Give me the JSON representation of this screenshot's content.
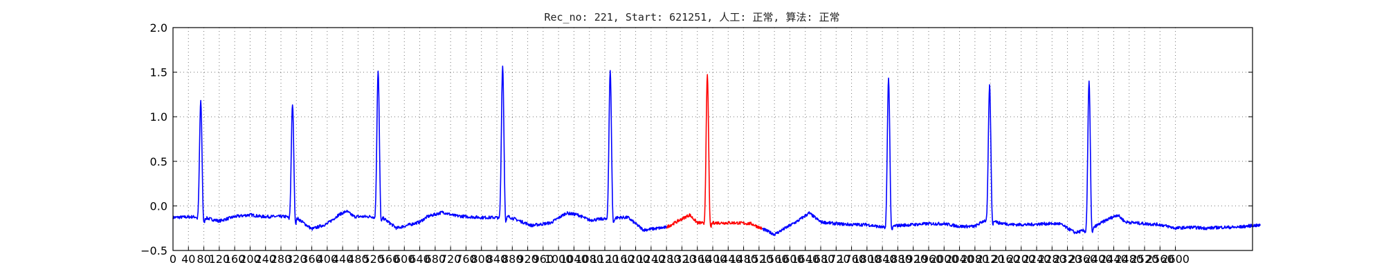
{
  "chart_data": {
    "type": "line",
    "title": "Rec_no: 221, Start: 621251, 人工: 正常, 算法: 正常",
    "xlim": [
      0,
      2800
    ],
    "ylim": [
      -0.5,
      2.0
    ],
    "yticks": [
      "−0.5",
      "0.0",
      "0.5",
      "1.0",
      "1.5",
      "2.0"
    ],
    "y_tick_values": [
      -0.5,
      0.0,
      0.5,
      1.0,
      1.5,
      2.0
    ],
    "xtick_step": 40,
    "xtick_labels": [
      "0",
      "40",
      "80",
      "120",
      "160",
      "200",
      "240",
      "280",
      "320",
      "360",
      "400",
      "440",
      "480",
      "520",
      "560",
      "600",
      "640",
      "680",
      "720",
      "760",
      "800",
      "840",
      "880",
      "920",
      "960",
      "1000",
      "1040",
      "1080",
      "1120",
      "1160",
      "1200",
      "1240",
      "1280",
      "1320",
      "1360",
      "1400",
      "1440",
      "1480",
      "1520",
      "1560",
      "1600",
      "1640",
      "1680",
      "1720",
      "1760",
      "1800",
      "1840",
      "1880",
      "1920",
      "1960",
      "2000",
      "2040",
      "2080",
      "2120",
      "2160",
      "2200",
      "2240",
      "2280",
      "2320",
      "2360",
      "2400",
      "2440",
      "2480",
      "2520",
      "2560",
      "2600"
    ],
    "grid": true,
    "baseline": [
      [
        0,
        -0.13
      ],
      [
        70,
        -0.12
      ],
      [
        120,
        -0.17
      ],
      [
        160,
        -0.12
      ],
      [
        200,
        -0.1
      ],
      [
        230,
        -0.12
      ],
      [
        260,
        -0.12
      ],
      [
        290,
        -0.12
      ],
      [
        320,
        -0.13
      ],
      [
        360,
        -0.26
      ],
      [
        400,
        -0.2
      ],
      [
        430,
        -0.1
      ],
      [
        450,
        -0.06
      ],
      [
        470,
        -0.12
      ],
      [
        500,
        -0.12
      ],
      [
        540,
        -0.12
      ],
      [
        580,
        -0.25
      ],
      [
        640,
        -0.18
      ],
      [
        660,
        -0.12
      ],
      [
        700,
        -0.07
      ],
      [
        730,
        -0.11
      ],
      [
        760,
        -0.12
      ],
      [
        800,
        -0.13
      ],
      [
        840,
        -0.13
      ],
      [
        870,
        -0.12
      ],
      [
        930,
        -0.22
      ],
      [
        980,
        -0.19
      ],
      [
        1020,
        -0.08
      ],
      [
        1050,
        -0.1
      ],
      [
        1080,
        -0.16
      ],
      [
        1130,
        -0.14
      ],
      [
        1160,
        -0.13
      ],
      [
        1180,
        -0.13
      ],
      [
        1220,
        -0.27
      ],
      [
        1280,
        -0.24
      ],
      [
        1340,
        -0.1
      ],
      [
        1360,
        -0.19
      ],
      [
        1420,
        -0.19
      ],
      [
        1460,
        -0.19
      ],
      [
        1500,
        -0.2
      ],
      [
        1560,
        -0.32
      ],
      [
        1620,
        -0.17
      ],
      [
        1650,
        -0.08
      ],
      [
        1680,
        -0.18
      ],
      [
        1720,
        -0.2
      ],
      [
        1760,
        -0.21
      ],
      [
        1800,
        -0.21
      ],
      [
        1840,
        -0.24
      ],
      [
        1880,
        -0.22
      ],
      [
        1920,
        -0.21
      ],
      [
        1960,
        -0.2
      ],
      [
        2000,
        -0.2
      ],
      [
        2040,
        -0.23
      ],
      [
        2080,
        -0.23
      ],
      [
        2120,
        -0.12
      ],
      [
        2140,
        -0.19
      ],
      [
        2180,
        -0.21
      ],
      [
        2220,
        -0.21
      ],
      [
        2260,
        -0.2
      ],
      [
        2300,
        -0.2
      ],
      [
        2340,
        -0.3
      ],
      [
        2380,
        -0.26
      ],
      [
        2420,
        -0.16
      ],
      [
        2450,
        -0.1
      ],
      [
        2470,
        -0.18
      ],
      [
        2520,
        -0.2
      ],
      [
        2560,
        -0.21
      ],
      [
        2600,
        -0.25
      ],
      [
        2640,
        -0.24
      ],
      [
        2680,
        -0.25
      ],
      [
        2720,
        -0.24
      ],
      [
        2760,
        -0.24
      ],
      [
        2800,
        -0.22
      ]
    ],
    "beats": [
      {
        "x": 72,
        "peak": 1.17
      },
      {
        "x": 310,
        "peak": 1.14
      },
      {
        "x": 532,
        "peak": 1.51
      },
      {
        "x": 855,
        "peak": 1.57
      },
      {
        "x": 1134,
        "peak": 1.51
      },
      {
        "x": 1386,
        "peak": 1.46
      },
      {
        "x": 1856,
        "peak": 1.43
      },
      {
        "x": 2118,
        "peak": 1.35
      },
      {
        "x": 2376,
        "peak": 1.39
      }
    ],
    "series": [
      {
        "x_range": [
          0,
          1280
        ],
        "color": "#0000ff"
      },
      {
        "x_range": [
          1280,
          1528
        ],
        "color": "#ff0000"
      },
      {
        "x_range": [
          1528,
          2820
        ],
        "color": "#0000ff"
      }
    ]
  }
}
